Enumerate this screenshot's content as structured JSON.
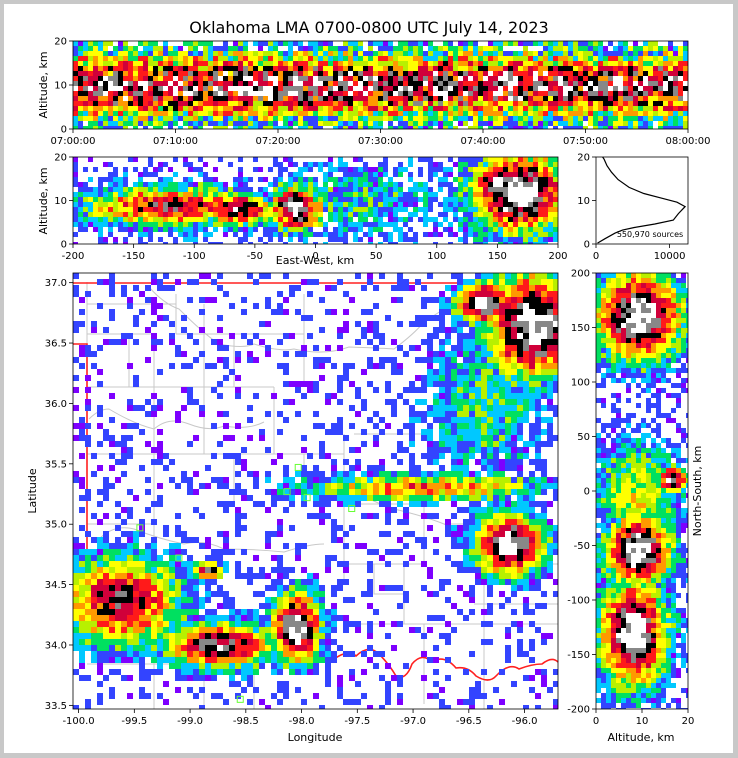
{
  "chart_data": {
    "type": "heatmap",
    "title": "Oklahoma LMA 0700-0800 UTC July 14, 2023",
    "colormap": [
      "#7d00ff",
      "#3344ff",
      "#00c8ff",
      "#00e060",
      "#b8f000",
      "#ffff00",
      "#ff9900",
      "#ff1a1a",
      "#d0003a",
      "#000000",
      "#888888",
      "#ffffff"
    ],
    "panels": {
      "time_height": {
        "xlabel": "",
        "ylabel": "Altitude, km",
        "xticks": [
          "07:00:00",
          "07:10:00",
          "07:20:00",
          "07:30:00",
          "07:40:00",
          "07:50:00",
          "08:00:00"
        ],
        "yticks": [
          0,
          10,
          20
        ],
        "ylim": [
          0,
          20
        ]
      },
      "ew_height": {
        "xlabel": "East-West, km",
        "ylabel": "Altitude, km",
        "xticks": [
          -200,
          -150,
          -100,
          -50,
          0,
          50,
          100,
          150,
          200
        ],
        "xlim": [
          -200,
          200
        ],
        "yticks": [
          0,
          10,
          20
        ],
        "ylim": [
          0,
          20
        ]
      },
      "altitude_histogram": {
        "xticks": [
          0,
          10000
        ],
        "xlim": [
          0,
          12500
        ],
        "yticks": [
          0,
          10,
          20
        ],
        "ylim": [
          0,
          20
        ],
        "annotation": "550,970 sources",
        "profile": [
          [
            200,
            0.2
          ],
          [
            1200,
            1.2
          ],
          [
            2600,
            2.5
          ],
          [
            3600,
            3.2
          ],
          [
            5200,
            3.8
          ],
          [
            8000,
            4.6
          ],
          [
            10500,
            5.5
          ],
          [
            11200,
            7.0
          ],
          [
            12100,
            8.6
          ],
          [
            11000,
            9.6
          ],
          [
            8800,
            10.6
          ],
          [
            6500,
            11.6
          ],
          [
            4500,
            13.0
          ],
          [
            3000,
            14.8
          ],
          [
            2100,
            16.5
          ],
          [
            1500,
            18.0
          ],
          [
            1100,
            19.5
          ],
          [
            900,
            20
          ]
        ]
      },
      "plan_view": {
        "xlabel": "Longitude",
        "ylabel": "Latitude",
        "xticks": [
          -100.0,
          -99.5,
          -99.0,
          -98.5,
          -98.0,
          -97.5,
          -97.0,
          -96.5,
          -96.0
        ],
        "xlim": [
          -100.05,
          -95.7
        ],
        "yticks": [
          33.5,
          34.0,
          34.5,
          35.0,
          35.5,
          36.0,
          36.5,
          37.0
        ],
        "ylim": [
          33.47,
          37.08
        ]
      },
      "ns_height": {
        "xlabel": "Altitude, km",
        "ylabel": "North-South, km",
        "xticks": [
          0,
          10,
          20
        ],
        "xlim": [
          0,
          20
        ],
        "yticks": [
          -200,
          -150,
          -100,
          -50,
          0,
          50,
          100,
          150,
          200
        ],
        "ylim": [
          -200,
          200
        ]
      }
    },
    "stations": [
      [
        -98.03,
        35.47
      ],
      [
        -98.13,
        35.27
      ],
      [
        -97.95,
        35.22
      ],
      [
        -97.55,
        35.13
      ],
      [
        -99.45,
        34.97
      ],
      [
        -99.1,
        34.72
      ],
      [
        -98.55,
        33.55
      ]
    ]
  }
}
